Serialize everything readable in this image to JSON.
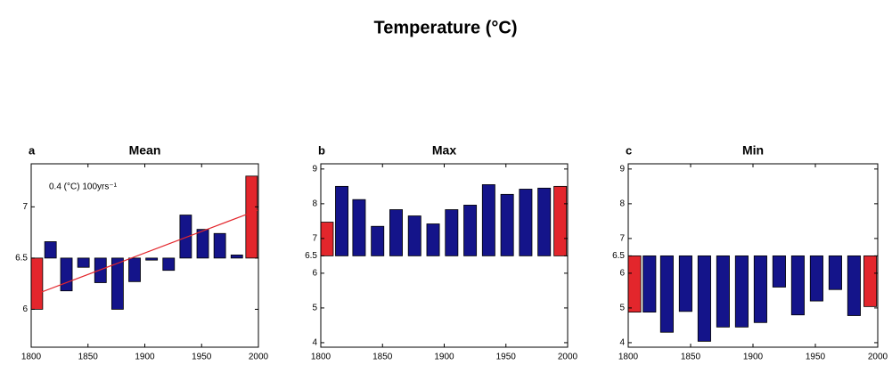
{
  "figure_title": "Temperature (°C)",
  "chart_data": [
    {
      "type": "bar",
      "label": "a",
      "title": "Mean",
      "annotation": "0.4 (°C) 100yrs⁻¹",
      "x": [
        1805,
        1817,
        1831,
        1846,
        1861,
        1876,
        1891,
        1906,
        1921,
        1936,
        1951,
        1966,
        1981,
        1994
      ],
      "values": [
        6.0,
        6.66,
        6.18,
        6.41,
        6.26,
        6.0,
        6.27,
        6.48,
        6.38,
        6.92,
        6.78,
        6.74,
        6.53,
        7.3
      ],
      "colors": [
        "#e3262c",
        "#14148a",
        "#14148a",
        "#14148a",
        "#14148a",
        "#14148a",
        "#14148a",
        "#14148a",
        "#14148a",
        "#14148a",
        "#14148a",
        "#14148a",
        "#14148a",
        "#e3262c"
      ],
      "baseline": 6.5,
      "xlim": [
        1800,
        2000
      ],
      "xticks": [
        1800,
        1850,
        1900,
        1950,
        2000
      ],
      "ylim": [
        5.63,
        7.42
      ],
      "yticks": [
        6,
        6.5,
        7
      ],
      "trend": {
        "x": [
          1800,
          2000
        ],
        "values": [
          6.13,
          6.97
        ],
        "color": "#e3262c"
      }
    },
    {
      "type": "bar",
      "label": "b",
      "title": "Max",
      "x": [
        1805,
        1817,
        1831,
        1846,
        1861,
        1876,
        1891,
        1906,
        1921,
        1936,
        1951,
        1966,
        1981,
        1994
      ],
      "values": [
        7.47,
        8.5,
        8.12,
        7.35,
        7.83,
        7.65,
        7.42,
        7.83,
        7.96,
        8.55,
        8.27,
        8.42,
        8.45,
        8.5
      ],
      "colors": [
        "#e3262c",
        "#14148a",
        "#14148a",
        "#14148a",
        "#14148a",
        "#14148a",
        "#14148a",
        "#14148a",
        "#14148a",
        "#14148a",
        "#14148a",
        "#14148a",
        "#14148a",
        "#e3262c"
      ],
      "baseline": 6.5,
      "xlim": [
        1800,
        2000
      ],
      "xticks": [
        1800,
        1850,
        1900,
        1950,
        2000
      ],
      "ylim": [
        3.87,
        9.15
      ],
      "yticks": [
        4,
        5,
        6,
        6.5,
        7,
        8,
        9
      ]
    },
    {
      "type": "bar",
      "label": "c",
      "title": "Min",
      "x": [
        1805,
        1817,
        1831,
        1846,
        1861,
        1876,
        1891,
        1906,
        1921,
        1936,
        1951,
        1966,
        1981,
        1994
      ],
      "values": [
        4.88,
        4.88,
        4.3,
        4.9,
        4.04,
        4.45,
        4.45,
        4.58,
        5.6,
        4.8,
        5.2,
        5.53,
        4.78,
        5.04
      ],
      "colors": [
        "#e3262c",
        "#14148a",
        "#14148a",
        "#14148a",
        "#14148a",
        "#14148a",
        "#14148a",
        "#14148a",
        "#14148a",
        "#14148a",
        "#14148a",
        "#14148a",
        "#14148a",
        "#e3262c"
      ],
      "baseline": 6.5,
      "xlim": [
        1800,
        2000
      ],
      "xticks": [
        1800,
        1850,
        1900,
        1950,
        2000
      ],
      "ylim": [
        3.87,
        9.15
      ],
      "yticks": [
        4,
        5,
        6,
        6.5,
        7,
        8,
        9
      ]
    }
  ]
}
